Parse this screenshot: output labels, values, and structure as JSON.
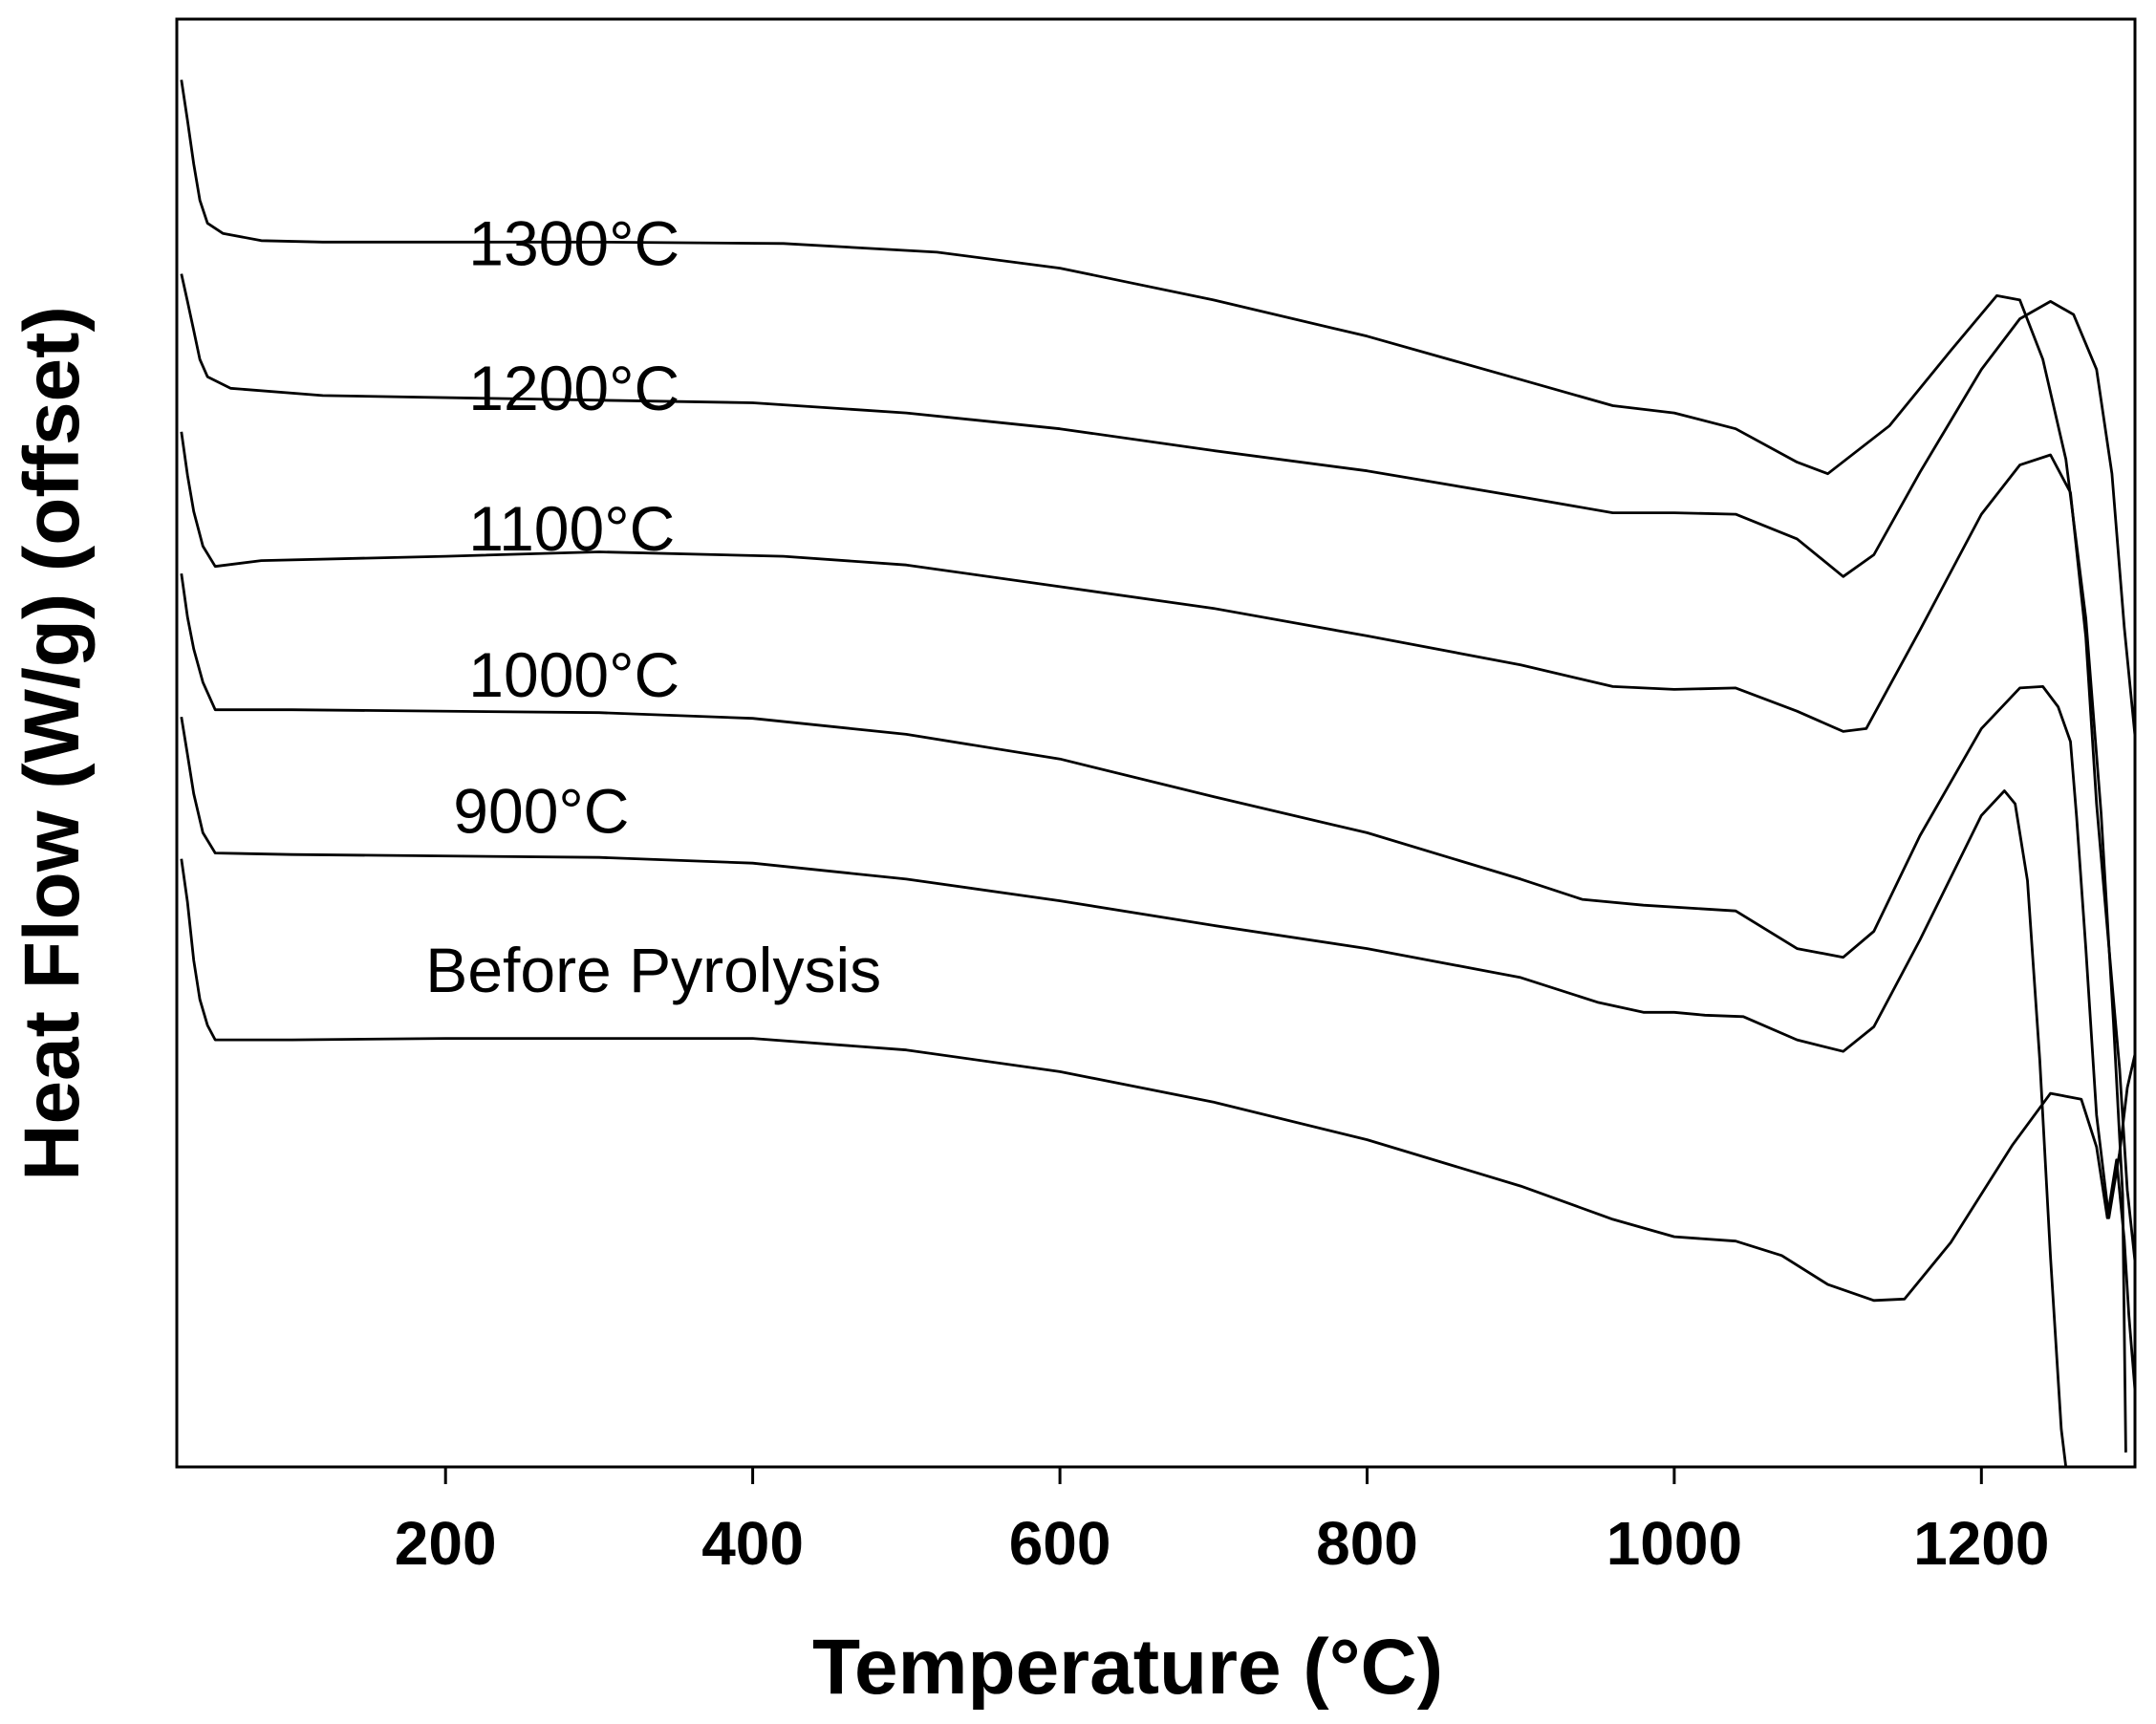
{
  "chart_data": {
    "type": "line",
    "title": "",
    "xlabel": "Temperature (°C)",
    "ylabel": "Heat Flow (W/g) (offset)",
    "xlim": [
      25,
      1300
    ],
    "ylim": [
      0,
      100
    ],
    "xticks": [
      200,
      400,
      600,
      800,
      1000,
      1200
    ],
    "xtick_labels": [
      "200",
      "400",
      "600",
      "800",
      "1000",
      "1200"
    ],
    "y_ticks_shown": false,
    "grid": false,
    "legend": "none (labels placed above each curve)",
    "series": [
      {
        "name": "1300°C",
        "label_at": [
          215,
          83
        ],
        "points": [
          [
            28,
            95.8
          ],
          [
            32,
            93
          ],
          [
            36,
            90
          ],
          [
            40,
            87.5
          ],
          [
            45,
            85.9
          ],
          [
            55,
            85.2
          ],
          [
            80,
            84.7
          ],
          [
            120,
            84.6
          ],
          [
            300,
            84.6
          ],
          [
            420,
            84.5
          ],
          [
            520,
            83.9
          ],
          [
            600,
            82.8
          ],
          [
            700,
            80.6
          ],
          [
            800,
            78.1
          ],
          [
            900,
            75.1
          ],
          [
            960,
            73.3
          ],
          [
            1000,
            72.8
          ],
          [
            1040,
            71.7
          ],
          [
            1080,
            69.4
          ],
          [
            1100,
            68.6
          ],
          [
            1140,
            71.9
          ],
          [
            1180,
            77.1
          ],
          [
            1210,
            80.9
          ],
          [
            1225,
            80.6
          ],
          [
            1240,
            76.5
          ],
          [
            1255,
            69.6
          ],
          [
            1268,
            58.6
          ],
          [
            1278,
            45.1
          ],
          [
            1286,
            30.7
          ],
          [
            1292,
            18.8
          ],
          [
            1294,
            1.0
          ]
        ]
      },
      {
        "name": "1200°C",
        "label_at": [
          215,
          73
        ],
        "points": [
          [
            28,
            82.4
          ],
          [
            32,
            80.5
          ],
          [
            36,
            78.5
          ],
          [
            40,
            76.5
          ],
          [
            45,
            75.3
          ],
          [
            60,
            74.5
          ],
          [
            120,
            74
          ],
          [
            400,
            73.5
          ],
          [
            500,
            72.8
          ],
          [
            600,
            71.7
          ],
          [
            700,
            70.2
          ],
          [
            800,
            68.8
          ],
          [
            900,
            67
          ],
          [
            960,
            65.9
          ],
          [
            1000,
            65.9
          ],
          [
            1040,
            65.8
          ],
          [
            1080,
            64.1
          ],
          [
            1110,
            61.5
          ],
          [
            1130,
            63
          ],
          [
            1160,
            68.7
          ],
          [
            1200,
            75.8
          ],
          [
            1225,
            79.3
          ],
          [
            1245,
            80.5
          ],
          [
            1260,
            79.6
          ],
          [
            1275,
            75.8
          ],
          [
            1285,
            68.6
          ],
          [
            1293,
            58
          ],
          [
            1300,
            50.5
          ]
        ]
      },
      {
        "name": "1100°C",
        "label_at": [
          215,
          63.3
        ],
        "points": [
          [
            28,
            71.5
          ],
          [
            32,
            68.5
          ],
          [
            36,
            66
          ],
          [
            42,
            63.6
          ],
          [
            50,
            62.2
          ],
          [
            80,
            62.6
          ],
          [
            200,
            62.9
          ],
          [
            300,
            63.2
          ],
          [
            420,
            62.9
          ],
          [
            500,
            62.3
          ],
          [
            600,
            60.8
          ],
          [
            700,
            59.3
          ],
          [
            800,
            57.4
          ],
          [
            900,
            55.4
          ],
          [
            960,
            53.9
          ],
          [
            1000,
            53.7
          ],
          [
            1040,
            53.8
          ],
          [
            1080,
            52.2
          ],
          [
            1110,
            50.8
          ],
          [
            1125,
            51
          ],
          [
            1160,
            57.8
          ],
          [
            1200,
            65.8
          ],
          [
            1225,
            69.2
          ],
          [
            1245,
            69.9
          ],
          [
            1258,
            67.3
          ],
          [
            1268,
            57.3
          ],
          [
            1275,
            45.8
          ],
          [
            1285,
            33.5
          ],
          [
            1290,
            27.5
          ],
          [
            1295,
            19.1
          ],
          [
            1300,
            14.2
          ]
        ]
      },
      {
        "name": "1000°C",
        "label_at": [
          215,
          53.2
        ],
        "points": [
          [
            28,
            61.7
          ],
          [
            32,
            58.7
          ],
          [
            36,
            56.5
          ],
          [
            42,
            54.2
          ],
          [
            50,
            52.3
          ],
          [
            100,
            52.3
          ],
          [
            300,
            52.1
          ],
          [
            400,
            51.7
          ],
          [
            500,
            50.6
          ],
          [
            600,
            48.9
          ],
          [
            700,
            46.3
          ],
          [
            800,
            43.8
          ],
          [
            900,
            40.6
          ],
          [
            940,
            39.2
          ],
          [
            980,
            38.8
          ],
          [
            1040,
            38.4
          ],
          [
            1080,
            35.8
          ],
          [
            1110,
            35.2
          ],
          [
            1130,
            37
          ],
          [
            1160,
            43.6
          ],
          [
            1200,
            51
          ],
          [
            1225,
            53.8
          ],
          [
            1240,
            53.9
          ],
          [
            1250,
            52.5
          ],
          [
            1258,
            50.1
          ],
          [
            1262,
            44.9
          ],
          [
            1268,
            35.8
          ],
          [
            1275,
            24.3
          ],
          [
            1283,
            17.2
          ],
          [
            1290,
            21.7
          ],
          [
            1295,
            26.2
          ],
          [
            1300,
            28.5
          ]
        ]
      },
      {
        "name": "900°C",
        "label_at": [
          205,
          43.8
        ],
        "points": [
          [
            28,
            51.8
          ],
          [
            32,
            49.2
          ],
          [
            36,
            46.5
          ],
          [
            42,
            43.8
          ],
          [
            50,
            42.4
          ],
          [
            100,
            42.3
          ],
          [
            300,
            42.1
          ],
          [
            400,
            41.7
          ],
          [
            500,
            40.6
          ],
          [
            600,
            39.1
          ],
          [
            700,
            37.4
          ],
          [
            800,
            35.8
          ],
          [
            900,
            33.8
          ],
          [
            950,
            32.1
          ],
          [
            980,
            31.4
          ],
          [
            1000,
            31.4
          ],
          [
            1020,
            31.2
          ],
          [
            1045,
            31.1
          ],
          [
            1080,
            29.5
          ],
          [
            1110,
            28.7
          ],
          [
            1130,
            30.4
          ],
          [
            1160,
            36.4
          ],
          [
            1200,
            45
          ],
          [
            1215,
            46.7
          ],
          [
            1222,
            45.8
          ],
          [
            1230,
            40.5
          ],
          [
            1238,
            28.1
          ],
          [
            1245,
            14.5
          ],
          [
            1252,
            2.6
          ],
          [
            1255,
            0
          ]
        ]
      },
      {
        "name": "Before Pyrolysis",
        "label_at": [
          187,
          32.8
        ],
        "points": [
          [
            28,
            42
          ],
          [
            32,
            39
          ],
          [
            36,
            35
          ],
          [
            40,
            32.3
          ],
          [
            45,
            30.5
          ],
          [
            50,
            29.5
          ],
          [
            100,
            29.5
          ],
          [
            200,
            29.6
          ],
          [
            400,
            29.6
          ],
          [
            500,
            28.8
          ],
          [
            600,
            27.3
          ],
          [
            700,
            25.2
          ],
          [
            800,
            22.6
          ],
          [
            900,
            19.4
          ],
          [
            960,
            17.1
          ],
          [
            1000,
            15.9
          ],
          [
            1040,
            15.6
          ],
          [
            1070,
            14.6
          ],
          [
            1100,
            12.6
          ],
          [
            1130,
            11.5
          ],
          [
            1150,
            11.6
          ],
          [
            1180,
            15.5
          ],
          [
            1220,
            22.2
          ],
          [
            1245,
            25.8
          ],
          [
            1265,
            25.4
          ],
          [
            1275,
            22.1
          ],
          [
            1282,
            17.2
          ],
          [
            1288,
            21.2
          ],
          [
            1293,
            15.7
          ],
          [
            1296,
            10.5
          ],
          [
            1300,
            5.3
          ]
        ]
      }
    ]
  }
}
